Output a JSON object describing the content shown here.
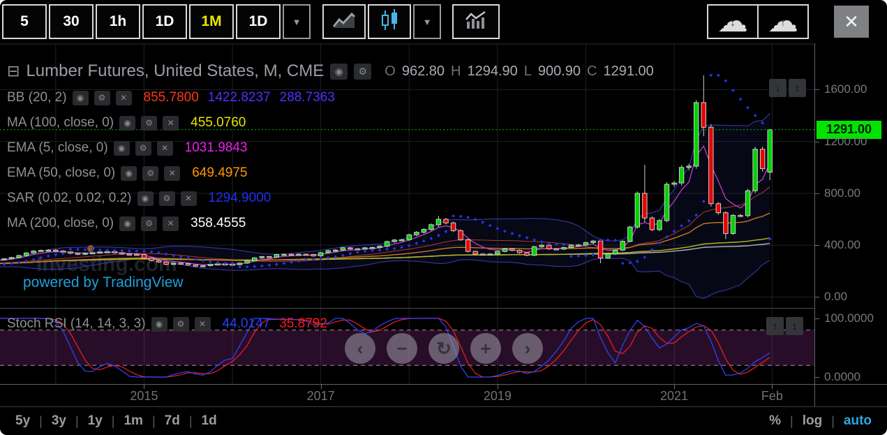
{
  "toolbar": {
    "timeframes": [
      "5",
      "30",
      "1h",
      "1D",
      "1M",
      "1D"
    ],
    "active_index": 4
  },
  "icons": {
    "eye": "◉",
    "gear": "⚙",
    "close": "✕",
    "collapse": "⊟",
    "dropdown": "▼",
    "cloud": "☁",
    "arrow_down": "↓",
    "arrow_up": "↑",
    "arrow_updown": "↕"
  },
  "legend": {
    "title": "Lumber Futures, United States, M, CME",
    "ohlc": [
      {
        "k": "O",
        "v": "962.80"
      },
      {
        "k": "H",
        "v": "1294.90"
      },
      {
        "k": "L",
        "v": "900.90"
      },
      {
        "k": "C",
        "v": "1291.00"
      }
    ],
    "rows": [
      {
        "label": "BB (20, 2)",
        "values": [
          {
            "text": "855.7800",
            "color": "#ff3614"
          },
          {
            "text": "1422.8237",
            "color": "#4934ff"
          },
          {
            "text": "288.7363",
            "color": "#4934ff"
          }
        ]
      },
      {
        "label": "MA (100, close, 0)",
        "values": [
          {
            "text": "455.0760",
            "color": "#e5e500"
          }
        ]
      },
      {
        "label": "EMA (5, close, 0)",
        "values": [
          {
            "text": "1031.9843",
            "color": "#ef1fef"
          }
        ]
      },
      {
        "label": "EMA (50, close, 0)",
        "values": [
          {
            "text": "649.4975",
            "color": "#ff9800"
          }
        ]
      },
      {
        "label": "SAR (0.02, 0.02, 0.2)",
        "values": [
          {
            "text": "1294.9000",
            "color": "#2230f0"
          }
        ]
      },
      {
        "label": "MA (200, close, 0)",
        "values": [
          {
            "text": "358.4555",
            "color": "#ffffff"
          }
        ]
      }
    ],
    "stoch": {
      "label": "Stoch RSI (14, 14, 3, 3)",
      "values": [
        {
          "text": "44.0147",
          "color": "#2b3cff"
        },
        {
          "text": "35.8792",
          "color": "#ff1a1a"
        }
      ]
    }
  },
  "powered_by": "powered by TradingView",
  "watermark": "Investing.com",
  "pane_buttons": {
    "price": [
      {
        "name": "price-pane-collapse-button",
        "glyph": "↓"
      },
      {
        "name": "price-pane-resize-button",
        "glyph": "↕"
      }
    ],
    "stoch": [
      {
        "name": "stoch-pane-expand-button",
        "glyph": "↑"
      },
      {
        "name": "stoch-pane-resize-button",
        "glyph": "↕"
      }
    ]
  },
  "nav_buttons": [
    {
      "name": "pan-left-button",
      "glyph": "‹"
    },
    {
      "name": "zoom-out-button",
      "glyph": "−"
    },
    {
      "name": "reset-view-button",
      "glyph": "↻"
    },
    {
      "name": "zoom-in-button",
      "glyph": "+"
    },
    {
      "name": "pan-right-button",
      "glyph": "›"
    }
  ],
  "bottom_bar": {
    "ranges": [
      "5y",
      "3y",
      "1y",
      "1m",
      "7d",
      "1d"
    ],
    "scale_options": [
      "%",
      "log",
      "auto"
    ],
    "active_scale": "auto",
    "separator": "|"
  },
  "chart_data": {
    "type": "candlestick",
    "symbol": "Lumber Futures, United States, M, CME",
    "timeframe": "1M",
    "current_price": 1291.0,
    "current_price_label": "1291.00",
    "ohlc_current": {
      "open": 962.8,
      "high": 1294.9,
      "low": 900.9,
      "close": 1291.0
    },
    "first_open": 290,
    "pre_closes": [
      252,
      248,
      244,
      240,
      236,
      240,
      246,
      252,
      258,
      264,
      270,
      266,
      262,
      256,
      250,
      246,
      250,
      256,
      262,
      268,
      274,
      280,
      286,
      290
    ],
    "closes": [
      295,
      305,
      320,
      340,
      355,
      360,
      362,
      355,
      348,
      338,
      330,
      338,
      342,
      348,
      350,
      342,
      332,
      330,
      328,
      300,
      282,
      270,
      252,
      262,
      258,
      248,
      238,
      242,
      252,
      256,
      254,
      250,
      262,
      280,
      302,
      312,
      308,
      328,
      330,
      326,
      330,
      328,
      318,
      342,
      358,
      362,
      380,
      372,
      370,
      380,
      382,
      392,
      428,
      440,
      442,
      480,
      500,
      522,
      558,
      600,
      572,
      512,
      442,
      352,
      332,
      330,
      332,
      352,
      372,
      360,
      342,
      322,
      388,
      400,
      372,
      370,
      382,
      400,
      402,
      420,
      432,
      302,
      332,
      362,
      430,
      540,
      800,
      610,
      520,
      590,
      870,
      880,
      1000,
      1010,
      1500,
      1310,
      720,
      650,
      490,
      630,
      628,
      820,
      1140,
      990,
      1291
    ],
    "overrides": {
      "59": [
        558,
        625,
        540,
        600
      ],
      "81": [
        432,
        438,
        260,
        302
      ],
      "87": [
        800,
        1020,
        575,
        610
      ],
      "94": [
        1010,
        1520,
        990,
        1500
      ],
      "95": [
        1500,
        1711,
        1240,
        1310
      ],
      "96": [
        1310,
        1335,
        698,
        720
      ],
      "98": [
        650,
        662,
        448,
        490
      ],
      "104": [
        962.8,
        1294.9,
        900.9,
        1291.0
      ]
    },
    "price_axis": [
      {
        "value": 1600,
        "label": "1600.00"
      },
      {
        "value": 1200,
        "label": "1200.00"
      },
      {
        "value": 800,
        "label": "800.00"
      },
      {
        "value": 400,
        "label": "400.00"
      },
      {
        "value": 0,
        "label": "0.00"
      }
    ],
    "stoch_axis": [
      {
        "value": 100,
        "label": "100.0000"
      },
      {
        "value": 0,
        "label": "0.0000"
      }
    ],
    "time_axis": [
      {
        "label": "2015",
        "index": 19
      },
      {
        "label": "2017",
        "index": 43
      },
      {
        "label": "2019",
        "index": 67
      },
      {
        "label": "2021",
        "index": 91
      },
      {
        "label": "Feb",
        "index": 104.3
      }
    ],
    "indicators": {
      "bb": [
        20,
        2
      ],
      "ma100": [
        100,
        "close",
        0
      ],
      "ema5": [
        5,
        "close",
        0
      ],
      "ema50": [
        50,
        "close",
        0
      ],
      "sar": [
        0.02,
        0.02,
        0.2
      ],
      "ma200": [
        200,
        "close",
        0
      ],
      "stoch_rsi": [
        14,
        14,
        3,
        3
      ],
      "stoch_bands": [
        80,
        20
      ]
    },
    "colors": {
      "up": "#00d200",
      "down": "#e80000",
      "candle_border": "#ccd4cc",
      "wick": "#cfcfcf",
      "bb_line": "#3c3cb4",
      "bb_fill": "rgba(70,80,220,0.10)",
      "bb_basis": "#b03a2a",
      "ma100": "#b8b818",
      "ema5": "#cc44cc",
      "ema50": "#c87a1e",
      "ma200": "#b4b4b4",
      "sar": "#2236ee",
      "price_line": "#00c000",
      "badge_bg": "#00e400",
      "stoch_k": "#3344ff",
      "stoch_d": "#ee2222",
      "stoch_band": "rgba(160,50,160,0.25)",
      "stoch_band_line": "#b08ab0",
      "grid": "#1e2126",
      "watermark": "#1f2227",
      "flame": "#c87010"
    }
  }
}
